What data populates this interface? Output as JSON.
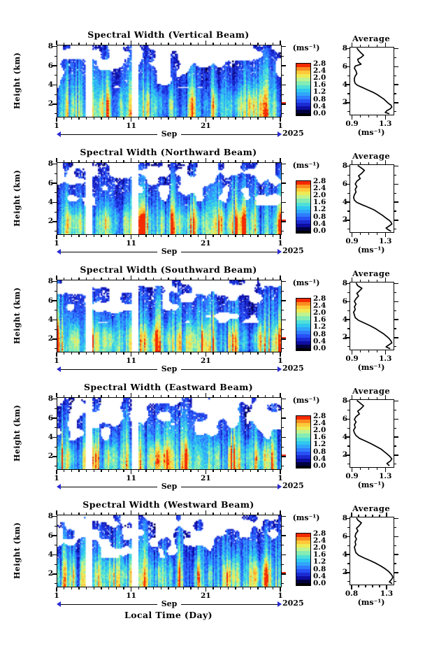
{
  "axes": {
    "ylabel": "Height (km)",
    "yticks": [
      "8",
      "6",
      "4",
      "2"
    ],
    "xtick_labels": [
      "1",
      "11",
      "21",
      "1"
    ],
    "month": "Sep",
    "year": "2025",
    "xlabel": "Local Time (Day)"
  },
  "colorbar": {
    "unit": "(ms⁻¹)",
    "ticks": [
      "2.8",
      "2.4",
      "2.0",
      "1.6",
      "1.2",
      "0.8",
      "0.4",
      "0.0"
    ],
    "tick_values": [
      2.8,
      2.4,
      2.0,
      1.6,
      1.2,
      0.8,
      0.4,
      0.0
    ],
    "level_min": 0.0,
    "level_max": 2.8,
    "level_step": 0.2,
    "colors_low_to_high": [
      "#000041",
      "#0d0da0",
      "#1b2bd2",
      "#2750f5",
      "#2f7cff",
      "#30a5fa",
      "#2fc8ef",
      "#4fdfd8",
      "#85ecb5",
      "#c0f38e",
      "#eeea55",
      "#fdc93a",
      "#fb8c20",
      "#f42a00"
    ],
    "no_data_color": "#ffffff",
    "bottom_band_color": "#000000"
  },
  "chart_data": [
    {
      "type": "heatmap+line",
      "title": "Spectral Width (Vertical Beam)",
      "heatmap": {
        "type": "heatmap",
        "x_month": "Sep",
        "x_year": "2025",
        "x_tick_days": [
          1,
          11,
          21,
          1
        ],
        "x_span_days": 30,
        "ylabel": "Height (km)",
        "y_range_km": [
          0.75,
          8.2
        ],
        "y_ticks_km": [
          2,
          4,
          6,
          8
        ],
        "value_unit": "(ms⁻¹)",
        "color_levels": [
          0.0,
          0.4,
          0.8,
          1.2,
          1.6,
          2.0,
          2.4,
          2.8
        ],
        "data_gap_days": [
          [
            4.7,
            5.7
          ],
          [
            11.0,
            11.9
          ]
        ],
        "pattern": "large spectral width bursts (>=2.0, red/orange) below ~3.5 km; 0.4-1.2 (blue/cyan) aloft; white = no data, frequent above 5 km"
      },
      "average": {
        "type": "line",
        "title": "Average",
        "xlabel": "(ms⁻¹)",
        "x_ticks": [
          0.9,
          1.3
        ],
        "x_tick_labels": [
          "0.9",
          "1.3"
        ],
        "x_range": [
          0.87,
          1.39
        ],
        "points_ms_km": [
          [
            0.95,
            8.15
          ],
          [
            0.97,
            7.9
          ],
          [
            1.0,
            7.6
          ],
          [
            1.03,
            7.35
          ],
          [
            1.0,
            7.1
          ],
          [
            0.96,
            6.9
          ],
          [
            0.97,
            6.6
          ],
          [
            1.0,
            6.35
          ],
          [
            0.93,
            6.15
          ],
          [
            0.92,
            5.9
          ],
          [
            0.94,
            5.6
          ],
          [
            0.95,
            5.3
          ],
          [
            0.93,
            5.05
          ],
          [
            0.92,
            4.8
          ],
          [
            0.92,
            4.5
          ],
          [
            0.93,
            4.2
          ],
          [
            0.96,
            4.0
          ],
          [
            1.02,
            3.75
          ],
          [
            1.08,
            3.5
          ],
          [
            1.14,
            3.25
          ],
          [
            1.19,
            3.0
          ],
          [
            1.23,
            2.75
          ],
          [
            1.27,
            2.5
          ],
          [
            1.3,
            2.25
          ],
          [
            1.33,
            2.0
          ],
          [
            1.36,
            1.8
          ],
          [
            1.37,
            1.6
          ],
          [
            1.35,
            1.4
          ],
          [
            1.31,
            1.2
          ],
          [
            1.29,
            1.0
          ],
          [
            1.34,
            0.85
          ]
        ]
      }
    },
    {
      "type": "heatmap+line",
      "title": "Spectral Width (Northward Beam)",
      "heatmap": {
        "type": "heatmap",
        "x_month": "Sep",
        "x_year": "2025",
        "x_tick_days": [
          1,
          11,
          21,
          1
        ],
        "x_span_days": 30,
        "ylabel": "Height (km)",
        "y_range_km": [
          0.75,
          8.2
        ],
        "y_ticks_km": [
          2,
          4,
          6,
          8
        ],
        "value_unit": "(ms⁻¹)",
        "color_levels": [
          0.0,
          0.4,
          0.8,
          1.2,
          1.6,
          2.0,
          2.4,
          2.8
        ],
        "data_gap_days": [
          [
            4.7,
            5.7
          ],
          [
            11.0,
            11.9
          ]
        ],
        "pattern": "same structure as vertical beam"
      },
      "average": {
        "type": "line",
        "title": "Average",
        "xlabel": "(ms⁻¹)",
        "x_ticks": [
          0.9,
          1.3
        ],
        "x_tick_labels": [
          "0.9",
          "1.3"
        ],
        "x_range": [
          0.87,
          1.39
        ],
        "points_ms_km": [
          [
            0.96,
            8.15
          ],
          [
            1.0,
            7.9
          ],
          [
            1.04,
            7.6
          ],
          [
            1.01,
            7.3
          ],
          [
            0.97,
            7.0
          ],
          [
            0.99,
            6.7
          ],
          [
            0.95,
            6.4
          ],
          [
            0.93,
            6.1
          ],
          [
            0.95,
            5.8
          ],
          [
            0.93,
            5.5
          ],
          [
            0.94,
            5.2
          ],
          [
            0.92,
            4.9
          ],
          [
            0.91,
            4.6
          ],
          [
            0.92,
            4.3
          ],
          [
            0.95,
            4.05
          ],
          [
            1.01,
            3.8
          ],
          [
            1.09,
            3.5
          ],
          [
            1.16,
            3.2
          ],
          [
            1.21,
            2.9
          ],
          [
            1.26,
            2.6
          ],
          [
            1.3,
            2.3
          ],
          [
            1.34,
            2.05
          ],
          [
            1.36,
            1.85
          ],
          [
            1.37,
            1.65
          ],
          [
            1.34,
            1.45
          ],
          [
            1.3,
            1.2
          ],
          [
            1.33,
            1.0
          ],
          [
            1.36,
            0.85
          ]
        ]
      }
    },
    {
      "type": "heatmap+line",
      "title": "Spectral Width (Southward Beam)",
      "heatmap": {
        "type": "heatmap",
        "x_month": "Sep",
        "x_year": "2025",
        "x_tick_days": [
          1,
          11,
          21,
          1
        ],
        "x_span_days": 30,
        "ylabel": "Height (km)",
        "y_range_km": [
          0.75,
          8.2
        ],
        "y_ticks_km": [
          2,
          4,
          6,
          8
        ],
        "value_unit": "(ms⁻¹)",
        "color_levels": [
          0.0,
          0.4,
          0.8,
          1.2,
          1.6,
          2.0,
          2.4,
          2.8
        ],
        "data_gap_days": [
          [
            4.7,
            5.7
          ],
          [
            11.0,
            11.9
          ]
        ],
        "pattern": "same structure as vertical beam"
      },
      "average": {
        "type": "line",
        "title": "Average",
        "xlabel": "(ms⁻¹)",
        "x_ticks": [
          0.9,
          1.3
        ],
        "x_tick_labels": [
          "0.9",
          "1.3"
        ],
        "x_range": [
          0.87,
          1.39
        ],
        "points_ms_km": [
          [
            0.94,
            8.15
          ],
          [
            0.96,
            7.85
          ],
          [
            1.01,
            7.55
          ],
          [
            0.98,
            7.25
          ],
          [
            0.95,
            7.0
          ],
          [
            0.97,
            6.7
          ],
          [
            0.94,
            6.4
          ],
          [
            0.92,
            6.1
          ],
          [
            0.94,
            5.8
          ],
          [
            0.92,
            5.5
          ],
          [
            0.93,
            5.2
          ],
          [
            0.91,
            4.9
          ],
          [
            0.92,
            4.6
          ],
          [
            0.93,
            4.3
          ],
          [
            0.97,
            4.0
          ],
          [
            1.04,
            3.7
          ],
          [
            1.11,
            3.4
          ],
          [
            1.17,
            3.1
          ],
          [
            1.22,
            2.8
          ],
          [
            1.27,
            2.5
          ],
          [
            1.31,
            2.2
          ],
          [
            1.34,
            1.95
          ],
          [
            1.36,
            1.7
          ],
          [
            1.37,
            1.5
          ],
          [
            1.33,
            1.25
          ],
          [
            1.3,
            1.05
          ],
          [
            1.35,
            0.85
          ]
        ]
      }
    },
    {
      "type": "heatmap+line",
      "title": "Spectral Width (Eastward Beam)",
      "heatmap": {
        "type": "heatmap",
        "x_month": "Sep",
        "x_year": "2025",
        "x_tick_days": [
          1,
          11,
          21,
          1
        ],
        "x_span_days": 30,
        "ylabel": "Height (km)",
        "y_range_km": [
          0.75,
          8.2
        ],
        "y_ticks_km": [
          2,
          4,
          6,
          8
        ],
        "value_unit": "(ms⁻¹)",
        "color_levels": [
          0.0,
          0.4,
          0.8,
          1.2,
          1.6,
          2.0,
          2.4,
          2.8
        ],
        "data_gap_days": [
          [
            4.7,
            5.7
          ],
          [
            11.0,
            11.9
          ]
        ],
        "pattern": "same structure as vertical beam"
      },
      "average": {
        "type": "line",
        "title": "Average",
        "xlabel": "(ms⁻¹)",
        "x_ticks": [
          0.9,
          1.3
        ],
        "x_tick_labels": [
          "0.9",
          "1.3"
        ],
        "x_range": [
          0.87,
          1.39
        ],
        "points_ms_km": [
          [
            0.95,
            8.15
          ],
          [
            0.99,
            7.85
          ],
          [
            1.03,
            7.55
          ],
          [
            1.0,
            7.25
          ],
          [
            0.96,
            6.95
          ],
          [
            0.98,
            6.65
          ],
          [
            0.94,
            6.35
          ],
          [
            0.92,
            6.05
          ],
          [
            0.94,
            5.75
          ],
          [
            0.92,
            5.45
          ],
          [
            0.93,
            5.15
          ],
          [
            0.91,
            4.85
          ],
          [
            0.92,
            4.55
          ],
          [
            0.94,
            4.25
          ],
          [
            0.98,
            3.95
          ],
          [
            1.05,
            3.65
          ],
          [
            1.12,
            3.35
          ],
          [
            1.18,
            3.05
          ],
          [
            1.24,
            2.75
          ],
          [
            1.28,
            2.45
          ],
          [
            1.32,
            2.15
          ],
          [
            1.35,
            1.9
          ],
          [
            1.37,
            1.65
          ],
          [
            1.35,
            1.4
          ],
          [
            1.31,
            1.15
          ],
          [
            1.34,
            0.9
          ]
        ]
      }
    },
    {
      "type": "heatmap+line",
      "title": "Spectral Width (Westward Beam)",
      "heatmap": {
        "type": "heatmap",
        "x_month": "Sep",
        "x_year": "2025",
        "x_tick_days": [
          1,
          11,
          21,
          1
        ],
        "x_span_days": 30,
        "ylabel": "Height (km)",
        "y_range_km": [
          0.75,
          8.2
        ],
        "y_ticks_km": [
          2,
          4,
          6,
          8
        ],
        "value_unit": "(ms⁻¹)",
        "color_levels": [
          0.0,
          0.4,
          0.8,
          1.2,
          1.6,
          2.0,
          2.4,
          2.8
        ],
        "data_gap_days": [
          [
            4.7,
            5.7
          ],
          [
            11.0,
            11.9
          ]
        ],
        "pattern": "same structure as vertical beam"
      },
      "average": {
        "type": "line",
        "title": "Average",
        "xlabel": "(ms⁻¹)",
        "x_ticks": [
          0.8,
          1.3
        ],
        "x_tick_labels": [
          "0.8",
          "1.3"
        ],
        "x_range": [
          0.77,
          1.39
        ],
        "points_ms_km": [
          [
            0.86,
            8.15
          ],
          [
            0.88,
            7.9
          ],
          [
            0.93,
            7.6
          ],
          [
            0.9,
            7.3
          ],
          [
            0.86,
            7.0
          ],
          [
            0.88,
            6.7
          ],
          [
            0.85,
            6.4
          ],
          [
            0.84,
            6.1
          ],
          [
            0.86,
            5.8
          ],
          [
            0.84,
            5.5
          ],
          [
            0.85,
            5.2
          ],
          [
            0.83,
            4.9
          ],
          [
            0.84,
            4.6
          ],
          [
            0.85,
            4.3
          ],
          [
            0.89,
            4.0
          ],
          [
            0.97,
            3.7
          ],
          [
            1.06,
            3.4
          ],
          [
            1.14,
            3.1
          ],
          [
            1.21,
            2.8
          ],
          [
            1.27,
            2.5
          ],
          [
            1.32,
            2.2
          ],
          [
            1.35,
            1.95
          ],
          [
            1.37,
            1.75
          ],
          [
            1.38,
            1.55
          ],
          [
            1.36,
            1.3
          ],
          [
            1.33,
            1.05
          ],
          [
            1.37,
            0.85
          ]
        ]
      }
    }
  ]
}
